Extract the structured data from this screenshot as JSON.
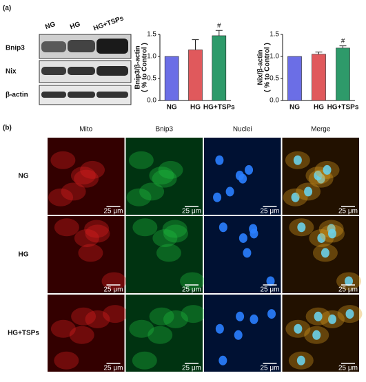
{
  "panels": [
    "(a)",
    "(b)"
  ],
  "blot": {
    "lanes": [
      "NG",
      "HG",
      "HG+TSPs"
    ],
    "rows": [
      "Bnip3",
      "Nix",
      "β-actin"
    ]
  },
  "chart_data": [
    {
      "type": "bar",
      "ylabel": [
        "Bnip3/β-actin",
        "( % to Control )"
      ],
      "categories": [
        "NG",
        "HG",
        "HG+TSPs"
      ],
      "values": [
        1.0,
        1.15,
        1.47
      ],
      "errors": [
        0,
        0.23,
        0.12
      ],
      "colors": [
        "#6b6ee6",
        "#e0595c",
        "#2e9a6a"
      ],
      "annotations": [
        null,
        null,
        "#"
      ],
      "ylim": [
        0,
        1.5
      ],
      "yticks": [
        {
          "value": 0,
          "label": "0.0"
        },
        0.5,
        {
          "value": 1,
          "label": "1.0"
        },
        1.5
      ]
    },
    {
      "type": "bar",
      "ylabel": [
        "Nix/β-actin",
        "( % to Control )"
      ],
      "categories": [
        "NG",
        "HG",
        "HG+TSPs"
      ],
      "values": [
        1.0,
        1.05,
        1.19
      ],
      "errors": [
        0,
        0.05,
        0.05
      ],
      "colors": [
        "#6b6ee6",
        "#e0595c",
        "#2e9a6a"
      ],
      "annotations": [
        null,
        null,
        "#"
      ],
      "ylim": [
        0,
        1.5
      ],
      "yticks": [
        {
          "value": 0,
          "label": "0.0"
        },
        0.5,
        {
          "value": 1,
          "label": "1.0"
        },
        1.5
      ]
    }
  ],
  "micrographs": {
    "columns": [
      "Mito",
      "Bnip3",
      "Nuclei",
      "Merge"
    ],
    "rows": [
      "NG",
      "HG",
      "HG+TSPs"
    ],
    "scale_bar": "25 μm"
  }
}
